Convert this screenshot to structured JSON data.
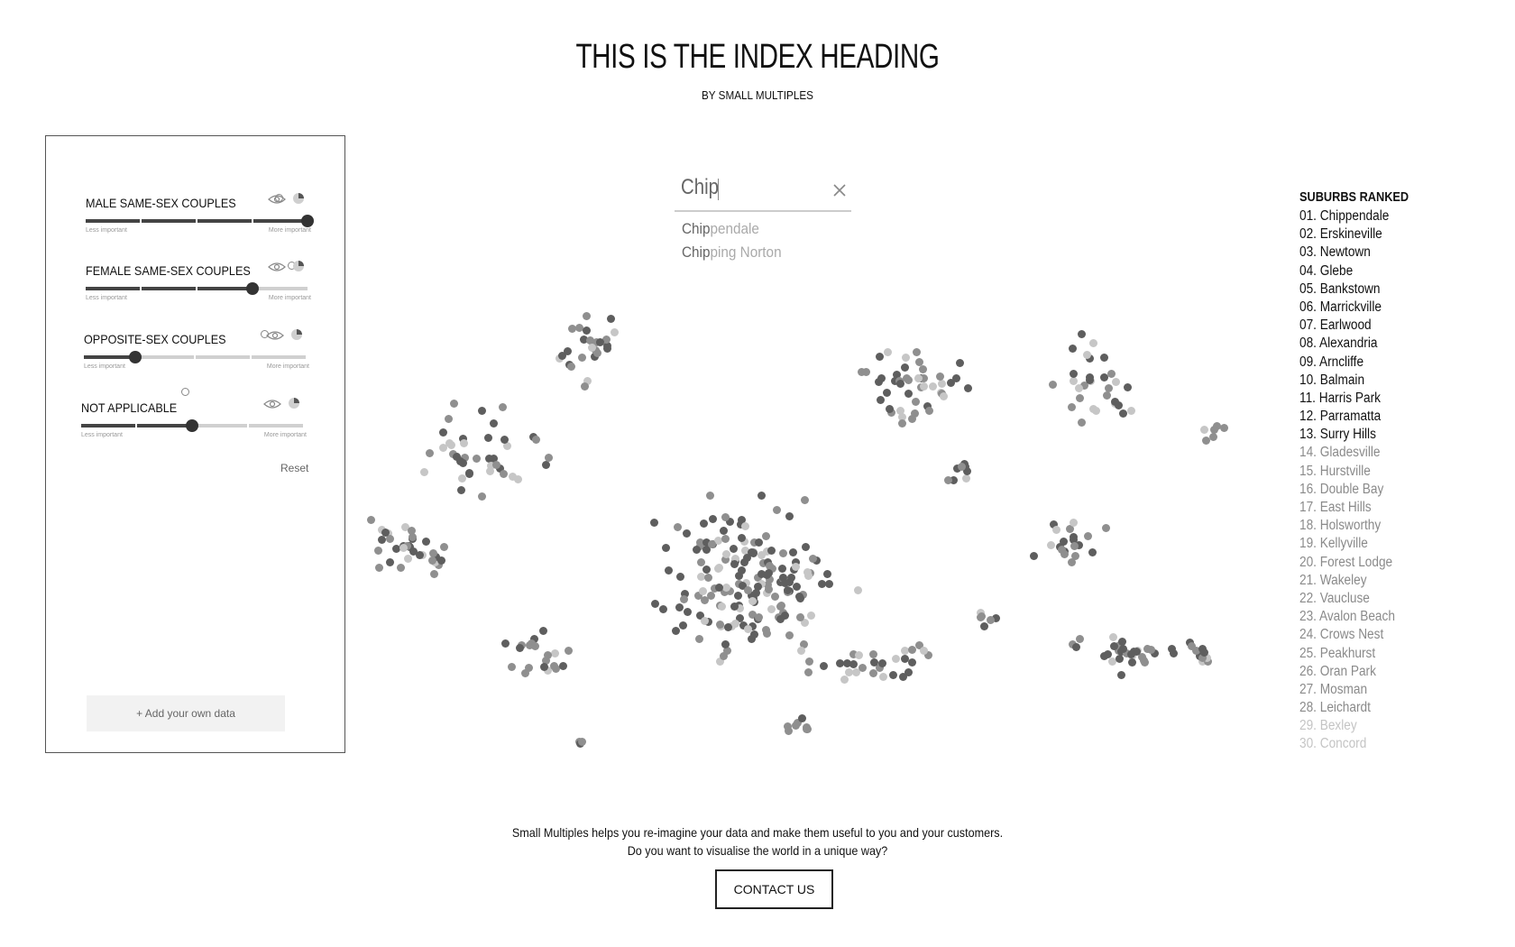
{
  "header": {
    "title": "THIS IS THE INDEX HEADING",
    "byline": "BY SMALL MULTIPLES"
  },
  "controls": {
    "min_label": "Less important",
    "max_label": "More important",
    "items": [
      {
        "label": "MALE SAME-SEX COUPLES",
        "level": 1.0
      },
      {
        "label": "FEMALE SAME-SEX COUPLES",
        "level": 0.75
      },
      {
        "label": "OPPOSITE-SEX COUPLES",
        "level": 0.23
      },
      {
        "label": "NOT APPLICABLE",
        "level": 0.5
      }
    ],
    "reset_label": "Reset",
    "add_data_label": "+ Add your own data"
  },
  "search": {
    "value": "Chip",
    "suggestions": [
      {
        "match": "Chip",
        "rest": "pendale"
      },
      {
        "match": "Chip",
        "rest": "ping Norton"
      }
    ]
  },
  "ranking": {
    "title": "SUBURBS RANKED",
    "items": [
      "01. Chippendale",
      "02. Erskineville",
      "03. Newtown",
      "04. Glebe",
      "05. Bankstown",
      "06. Marrickville",
      "07. Earlwood",
      "08. Alexandria",
      "09. Arncliffe",
      "10. Balmain",
      "11. Harris Park",
      "12. Parramatta",
      "13. Surry Hills",
      "14. Gladesville",
      "15. Hurstville",
      "16. Double Bay",
      "17. East Hills",
      "18. Holsworthy",
      "19. Kellyville",
      "20. Forest Lodge",
      "21. Wakeley",
      "22. Vaucluse",
      "23. Avalon Beach",
      "24. Crows Nest",
      "25. Peakhurst",
      "26. Oran Park",
      "27. Mosman",
      "28. Leichardt",
      "29. Bexley",
      "30. Concord"
    ],
    "colors": {
      "top": "#111111",
      "mid": "#8a8a8a",
      "faded": "#c4c4c4"
    }
  },
  "footer": {
    "line1": "Small Multiples helps you re-imagine your data and make them useful to you and your customers.",
    "line2": "Do you want to visualise the world in a unique way?",
    "cta_label": "CONTACT US"
  },
  "dot_colors": [
    "#5e5e5e",
    "#8f8f8f",
    "#c6c6c6"
  ]
}
